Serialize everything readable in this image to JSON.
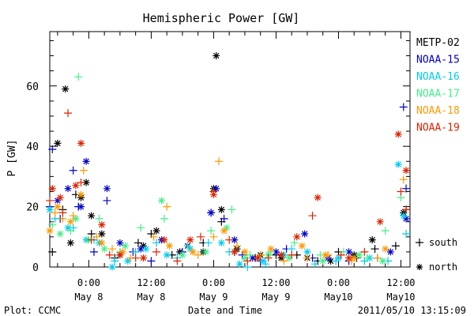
{
  "chart_data": {
    "type": "scatter",
    "title": "Hemispheric Power [GW]",
    "ylabel": "P [GW]",
    "xlabel": "Date and Time",
    "ylim": [
      0,
      78
    ],
    "xlim": [
      "2011-05-07 16:30",
      "2011-05-10 13:45"
    ],
    "y_ticks": [
      0,
      20,
      40,
      60
    ],
    "x_ticks": [
      {
        "t": "2011-05-08 00:00",
        "time": "0:00",
        "date": "May 8"
      },
      {
        "t": "2011-05-08 12:00",
        "time": "12:00",
        "date": "May 8"
      },
      {
        "t": "2011-05-09 00:00",
        "time": "0:00",
        "date": "May 9"
      },
      {
        "t": "2011-05-09 12:00",
        "time": "12:00",
        "date": "May 9"
      },
      {
        "t": "2011-05-10 00:00",
        "time": "0:00",
        "date": "May10"
      },
      {
        "t": "2011-05-10 12:00",
        "time": "12:00",
        "date": "May10"
      }
    ],
    "markers": {
      "south": "+",
      "north": "*"
    },
    "series": [
      {
        "name": "METP-02",
        "color": "#000000",
        "south": [
          [
            "2011-05-07 17:00",
            5
          ],
          [
            "2011-05-07 19:00",
            19
          ],
          [
            "2011-05-07 21:30",
            24
          ],
          [
            "2011-05-08 00:30",
            11
          ],
          [
            "2011-05-08 05:00",
            3
          ],
          [
            "2011-05-08 09:30",
            8
          ],
          [
            "2011-05-08 12:00",
            11
          ],
          [
            "2011-05-08 16:00",
            4
          ],
          [
            "2011-05-08 22:00",
            8
          ],
          [
            "2011-05-09 01:30",
            15
          ],
          [
            "2011-05-09 04:00",
            5
          ],
          [
            "2011-05-09 08:00",
            3
          ],
          [
            "2011-05-09 12:00",
            4
          ],
          [
            "2011-05-09 16:00",
            4
          ],
          [
            "2011-05-09 20:00",
            2
          ],
          [
            "2011-05-10 00:00",
            5
          ],
          [
            "2011-05-10 03:30",
            3
          ],
          [
            "2011-05-10 07:00",
            6
          ],
          [
            "2011-05-10 11:00",
            7
          ],
          [
            "2011-05-10 13:00",
            19
          ]
        ],
        "north": [
          [
            "2011-05-07 18:00",
            41
          ],
          [
            "2011-05-07 19:30",
            59
          ],
          [
            "2011-05-07 20:30",
            8
          ],
          [
            "2011-05-07 22:30",
            23
          ],
          [
            "2011-05-07 23:30",
            28
          ],
          [
            "2011-05-08 00:30",
            17
          ],
          [
            "2011-05-08 02:30",
            11
          ],
          [
            "2011-05-08 06:00",
            4
          ],
          [
            "2011-05-08 10:30",
            7
          ],
          [
            "2011-05-08 13:00",
            12
          ],
          [
            "2011-05-08 17:30",
            5
          ],
          [
            "2011-05-08 22:00",
            5
          ],
          [
            "2011-05-09 00:00",
            26
          ],
          [
            "2011-05-09 00:30",
            70
          ],
          [
            "2011-05-09 01:30",
            19
          ],
          [
            "2011-05-09 04:30",
            6
          ],
          [
            "2011-05-09 09:00",
            4
          ],
          [
            "2011-05-09 13:00",
            3
          ],
          [
            "2011-05-09 18:00",
            3
          ],
          [
            "2011-05-09 22:30",
            2
          ],
          [
            "2011-05-10 03:00",
            4
          ],
          [
            "2011-05-10 06:30",
            9
          ],
          [
            "2011-05-10 12:30",
            18
          ]
        ]
      },
      {
        "name": "NOAA-15",
        "color": "#0000cc",
        "south": [
          [
            "2011-05-07 16:30",
            20
          ],
          [
            "2011-05-07 17:00",
            39
          ],
          [
            "2011-05-07 18:30",
            16
          ],
          [
            "2011-05-07 21:00",
            32
          ],
          [
            "2011-05-07 22:00",
            20
          ],
          [
            "2011-05-08 01:00",
            5
          ],
          [
            "2011-05-08 03:30",
            22
          ],
          [
            "2011-05-08 08:30",
            5
          ],
          [
            "2011-05-08 12:00",
            2
          ],
          [
            "2011-05-08 18:00",
            5
          ],
          [
            "2011-05-08 23:30",
            18
          ],
          [
            "2011-05-09 02:00",
            16
          ],
          [
            "2011-05-09 05:30",
            4
          ],
          [
            "2011-05-09 09:00",
            2
          ],
          [
            "2011-05-09 14:00",
            6
          ],
          [
            "2011-05-09 19:00",
            3
          ],
          [
            "2011-05-10 02:00",
            2
          ],
          [
            "2011-05-10 07:30",
            3
          ],
          [
            "2011-05-10 12:30",
            53
          ],
          [
            "2011-05-10 13:00",
            26
          ]
        ],
        "north": [
          [
            "2011-05-07 18:00",
            22
          ],
          [
            "2011-05-07 20:00",
            26
          ],
          [
            "2011-05-07 22:30",
            20
          ],
          [
            "2011-05-07 23:30",
            35
          ],
          [
            "2011-05-08 03:30",
            26
          ],
          [
            "2011-05-08 06:00",
            8
          ],
          [
            "2011-05-08 10:00",
            6
          ],
          [
            "2011-05-08 14:00",
            9
          ],
          [
            "2011-05-08 19:00",
            7
          ],
          [
            "2011-05-08 23:30",
            18
          ],
          [
            "2011-05-09 00:30",
            26
          ],
          [
            "2011-05-09 04:00",
            9
          ],
          [
            "2011-05-09 07:30",
            3
          ],
          [
            "2011-05-09 12:00",
            5
          ],
          [
            "2011-05-09 17:30",
            11
          ],
          [
            "2011-05-09 22:00",
            3
          ],
          [
            "2011-05-10 02:00",
            5
          ],
          [
            "2011-05-10 10:00",
            5
          ],
          [
            "2011-05-10 13:00",
            16
          ]
        ]
      },
      {
        "name": "NOAA-16",
        "color": "#00ccee",
        "south": [
          [
            "2011-05-07 17:30",
            16
          ],
          [
            "2011-05-07 21:00",
            13
          ],
          [
            "2011-05-08 01:00",
            9
          ],
          [
            "2011-05-08 05:00",
            2
          ],
          [
            "2011-05-08 09:00",
            5
          ],
          [
            "2011-05-08 13:00",
            8
          ],
          [
            "2011-05-08 17:00",
            3
          ],
          [
            "2011-05-08 23:00",
            8
          ],
          [
            "2011-05-09 03:00",
            5
          ],
          [
            "2011-05-09 06:30",
            0
          ],
          [
            "2011-05-09 10:00",
            1
          ],
          [
            "2011-05-09 15:00",
            6
          ],
          [
            "2011-05-09 19:30",
            1
          ],
          [
            "2011-05-09 23:30",
            2
          ],
          [
            "2011-05-10 05:00",
            2
          ],
          [
            "2011-05-10 09:30",
            2
          ],
          [
            "2011-05-10 13:00",
            11
          ]
        ],
        "north": [
          [
            "2011-05-07 16:30",
            19
          ],
          [
            "2011-05-07 20:00",
            13
          ],
          [
            "2011-05-07 23:30",
            9
          ],
          [
            "2011-05-08 02:00",
            8
          ],
          [
            "2011-05-08 04:30",
            0
          ],
          [
            "2011-05-08 07:30",
            2
          ],
          [
            "2011-05-08 11:00",
            6
          ],
          [
            "2011-05-08 15:00",
            4
          ],
          [
            "2011-05-08 19:30",
            6
          ],
          [
            "2011-05-09 01:30",
            8
          ],
          [
            "2011-05-09 05:00",
            1
          ],
          [
            "2011-05-09 09:30",
            2
          ],
          [
            "2011-05-09 13:30",
            4
          ],
          [
            "2011-05-09 18:00",
            5
          ],
          [
            "2011-05-10 00:00",
            3
          ],
          [
            "2011-05-10 06:00",
            3
          ],
          [
            "2011-05-10 11:30",
            34
          ],
          [
            "2011-05-10 12:30",
            17
          ]
        ]
      },
      {
        "name": "NOAA-17",
        "color": "#44ee88",
        "south": [
          [
            "2011-05-07 17:00",
            14
          ],
          [
            "2011-05-07 20:30",
            12
          ],
          [
            "2011-05-07 22:00",
            63
          ],
          [
            "2011-05-08 02:00",
            16
          ],
          [
            "2011-05-08 06:00",
            5
          ],
          [
            "2011-05-08 10:00",
            13
          ],
          [
            "2011-05-08 14:30",
            16
          ],
          [
            "2011-05-08 19:00",
            7
          ],
          [
            "2011-05-08 23:30",
            12
          ],
          [
            "2011-05-09 03:30",
            19
          ],
          [
            "2011-05-09 07:00",
            4
          ],
          [
            "2011-05-09 11:00",
            5
          ],
          [
            "2011-05-09 15:30",
            8
          ],
          [
            "2011-05-09 20:30",
            4
          ],
          [
            "2011-05-10 01:00",
            5
          ],
          [
            "2011-05-10 05:30",
            3
          ],
          [
            "2011-05-10 09:00",
            12
          ],
          [
            "2011-05-10 12:00",
            23
          ]
        ],
        "north": [
          [
            "2011-05-07 18:30",
            11
          ],
          [
            "2011-05-07 21:30",
            16
          ],
          [
            "2011-05-08 00:00",
            9
          ],
          [
            "2011-05-08 03:00",
            6
          ],
          [
            "2011-05-08 07:00",
            7
          ],
          [
            "2011-05-08 14:00",
            22
          ],
          [
            "2011-05-08 18:00",
            4
          ],
          [
            "2011-05-08 22:30",
            5
          ],
          [
            "2011-05-09 02:30",
            13
          ],
          [
            "2011-05-09 06:00",
            3
          ],
          [
            "2011-05-09 10:30",
            4
          ],
          [
            "2011-05-09 14:30",
            3
          ],
          [
            "2011-05-09 21:00",
            2
          ],
          [
            "2011-05-10 04:00",
            4
          ],
          [
            "2011-05-10 08:30",
            2
          ]
        ]
      },
      {
        "name": "NOAA-18",
        "color": "#ff9900",
        "south": [
          [
            "2011-05-07 17:30",
            18
          ],
          [
            "2011-05-07 19:00",
            16
          ],
          [
            "2011-05-07 21:00",
            17
          ],
          [
            "2011-05-07 23:00",
            32
          ],
          [
            "2011-05-08 01:30",
            10
          ],
          [
            "2011-05-08 04:30",
            6
          ],
          [
            "2011-05-08 08:00",
            3
          ],
          [
            "2011-05-08 12:30",
            10
          ],
          [
            "2011-05-08 15:00",
            20
          ],
          [
            "2011-05-08 21:00",
            4
          ],
          [
            "2011-05-09 00:00",
            10
          ],
          [
            "2011-05-09 01:00",
            35
          ],
          [
            "2011-05-09 04:30",
            7
          ],
          [
            "2011-05-09 09:00",
            4
          ],
          [
            "2011-05-09 13:30",
            2
          ],
          [
            "2011-05-09 18:00",
            3
          ],
          [
            "2011-05-09 22:00",
            4
          ],
          [
            "2011-05-10 02:30",
            2
          ],
          [
            "2011-05-10 07:30",
            3
          ],
          [
            "2011-05-10 12:30",
            29
          ]
        ],
        "north": [
          [
            "2011-05-07 16:30",
            12
          ],
          [
            "2011-05-07 18:00",
            20
          ],
          [
            "2011-05-07 20:30",
            15
          ],
          [
            "2011-05-07 22:30",
            24
          ],
          [
            "2011-05-08 02:30",
            8
          ],
          [
            "2011-05-08 06:30",
            5
          ],
          [
            "2011-05-08 10:30",
            3
          ],
          [
            "2011-05-08 15:30",
            7
          ],
          [
            "2011-05-08 20:00",
            5
          ],
          [
            "2011-05-09 02:00",
            12
          ],
          [
            "2011-05-09 06:00",
            5
          ],
          [
            "2011-05-09 11:00",
            6
          ],
          [
            "2011-05-09 17:00",
            7
          ],
          [
            "2011-05-09 21:30",
            4
          ],
          [
            "2011-05-10 03:00",
            3
          ],
          [
            "2011-05-10 09:00",
            6
          ]
        ]
      },
      {
        "name": "NOAA-19",
        "color": "#dd2200",
        "south": [
          [
            "2011-05-07 16:30",
            22
          ],
          [
            "2011-05-07 19:00",
            18
          ],
          [
            "2011-05-07 20:00",
            51
          ],
          [
            "2011-05-07 22:30",
            28
          ],
          [
            "2011-05-08 00:30",
            9
          ],
          [
            "2011-05-08 04:00",
            4
          ],
          [
            "2011-05-08 09:00",
            3
          ],
          [
            "2011-05-08 13:00",
            5
          ],
          [
            "2011-05-08 17:00",
            2
          ],
          [
            "2011-05-08 21:30",
            10
          ],
          [
            "2011-05-09 00:00",
            25
          ],
          [
            "2011-05-09 03:00",
            9
          ],
          [
            "2011-05-09 06:30",
            2
          ],
          [
            "2011-05-09 10:30",
            3
          ],
          [
            "2011-05-09 15:00",
            4
          ],
          [
            "2011-05-09 19:00",
            17
          ],
          [
            "2011-05-10 00:30",
            4
          ],
          [
            "2011-05-10 05:00",
            5
          ],
          [
            "2011-05-10 12:00",
            25
          ],
          [
            "2011-05-10 13:00",
            19
          ]
        ],
        "north": [
          [
            "2011-05-07 17:00",
            26
          ],
          [
            "2011-05-07 18:30",
            23
          ],
          [
            "2011-05-07 21:30",
            27
          ],
          [
            "2011-05-07 22:30",
            41
          ],
          [
            "2011-05-08 02:30",
            14
          ],
          [
            "2011-05-08 06:00",
            4
          ],
          [
            "2011-05-08 10:30",
            3
          ],
          [
            "2011-05-08 14:30",
            9
          ],
          [
            "2011-05-08 19:30",
            9
          ],
          [
            "2011-05-09 00:00",
            24
          ],
          [
            "2011-05-09 04:00",
            5
          ],
          [
            "2011-05-09 08:30",
            3
          ],
          [
            "2011-05-09 13:00",
            4
          ],
          [
            "2011-05-09 16:00",
            10
          ],
          [
            "2011-05-09 20:00",
            23
          ],
          [
            "2011-05-10 02:00",
            3
          ],
          [
            "2011-05-10 08:00",
            15
          ],
          [
            "2011-05-10 11:30",
            44
          ],
          [
            "2011-05-10 13:00",
            32
          ]
        ]
      }
    ]
  },
  "legend": {
    "south_label": "south",
    "north_label": "north"
  },
  "footer": {
    "plot_credit": "Plot: CCMC",
    "timestamp": "2011/05/10 13:15:09"
  }
}
